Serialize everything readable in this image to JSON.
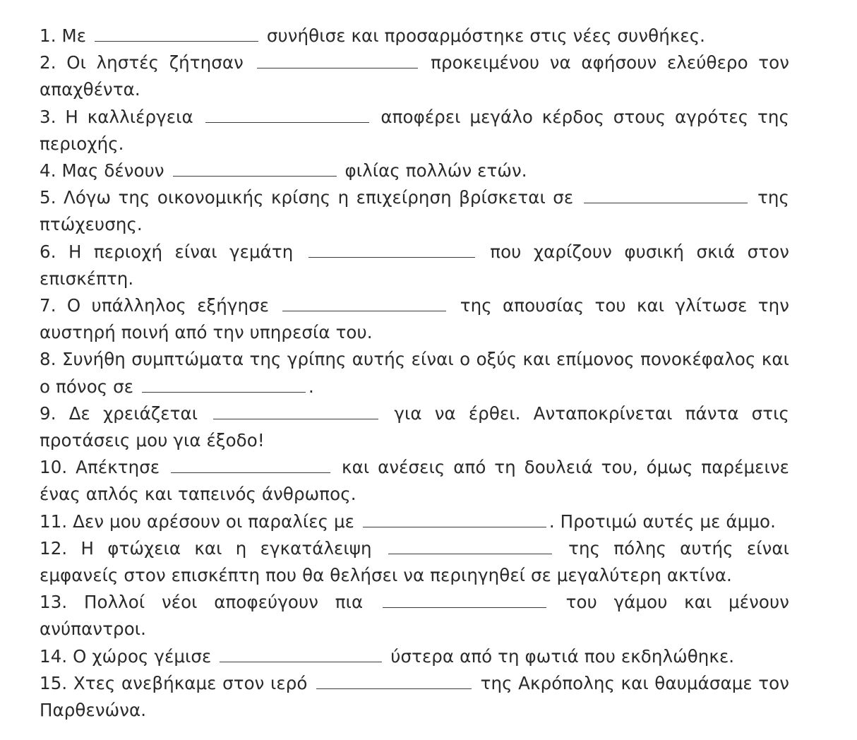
{
  "exercise": {
    "items": [
      {
        "num": "1.",
        "before": "Με",
        "after": "συνήθισε και προσαρμόστηκε στις νέες συνθήκες."
      },
      {
        "num": "2.",
        "before": "Οι ληστές ζήτησαν",
        "after": "προκειμένου να αφήσουν ελεύθερο τον απαχθέντα."
      },
      {
        "num": "3.",
        "before": "Η καλλιέργεια",
        "after": "αποφέρει μεγάλο κέρδος στους αγρότες της περιοχής."
      },
      {
        "num": "4.",
        "before": "Μας δένουν",
        "after": "φιλίας πολλών ετών."
      },
      {
        "num": "5.",
        "before": "Λόγω της οικονομικής κρίσης η επιχείρηση βρίσκεται σε",
        "after": "της πτώχευσης."
      },
      {
        "num": "6.",
        "before": "Η περιοχή είναι γεμάτη",
        "after": "που χαρίζουν φυσική σκιά στον επισκέπτη."
      },
      {
        "num": "7.",
        "before": "Ο υπάλληλος εξήγησε",
        "after": "της απουσίας του και γλίτωσε την αυστηρή ποινή από την υπηρεσία του."
      },
      {
        "num": "8.",
        "before": "Συνήθη συμπτώματα της γρίπης αυτής είναι ο οξύς και επίμονος πονοκέφαλος και ο πόνος σε",
        "after": "."
      },
      {
        "num": "9.",
        "before": "Δε χρειάζεται",
        "after": "για να έρθει. Ανταποκρίνεται πάντα στις προτάσεις μου για έξοδο!"
      },
      {
        "num": "10.",
        "before": "Απέκτησε",
        "after": "και ανέσεις από τη δουλειά του, όμως παρέμεινε ένας απλός και ταπεινός άνθρωπος."
      },
      {
        "num": "11.",
        "before": "Δεν μου αρέσουν οι παραλίες με",
        "after": ". Προτιμώ αυτές με άμμο."
      },
      {
        "num": "12.",
        "before": "Η φτώχεια και η εγκατάλειψη",
        "after": "της πόλης αυτής είναι εμφανείς στον επισκέπτη που θα θελήσει να περιηγηθεί σε μεγαλύτερη ακτίνα."
      },
      {
        "num": "13.",
        "before": "Πολλοί νέοι αποφεύγουν πια",
        "after": "του γάμου και μένουν ανύπαντροι."
      },
      {
        "num": "14.",
        "before": "Ο χώρος γέμισε",
        "after": "ύστερα από τη φωτιά που εκδηλώθηκε."
      },
      {
        "num": "15.",
        "before": "Χτες ανεβήκαμε στον ιερό",
        "after": "της Ακρόπολης και θαυμάσαμε τον Παρθενώνα."
      }
    ]
  }
}
